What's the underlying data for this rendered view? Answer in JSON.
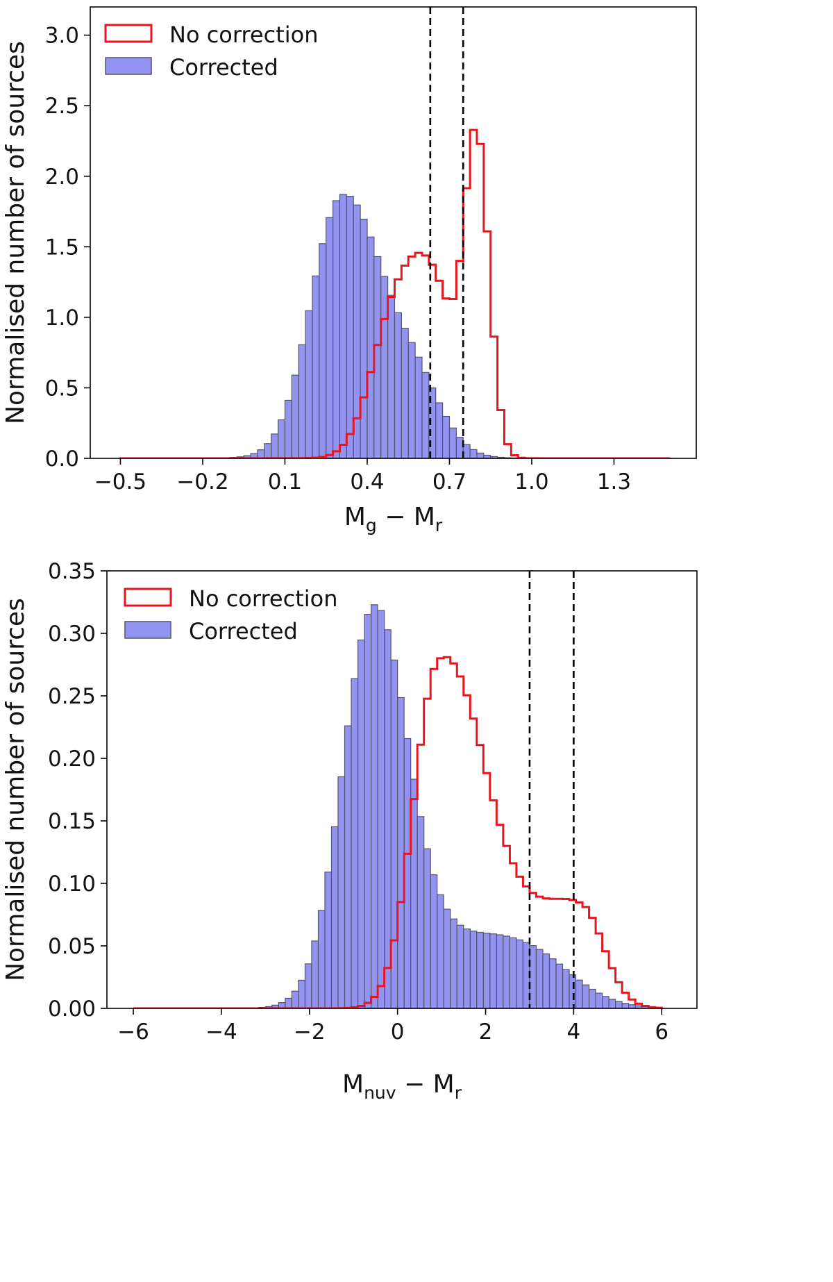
{
  "chart_data": [
    {
      "type": "histogram",
      "xlabel": {
        "base": "M",
        "sub1": "g",
        "minus": " − ",
        "base2": "M",
        "sub2": "r"
      },
      "ylabel": "Normalised number of sources",
      "xlim": [
        -0.61,
        1.6
      ],
      "ylim": [
        0,
        3.2
      ],
      "xticks": [
        -0.5,
        -0.2,
        0.1,
        0.4,
        0.7,
        1.0,
        1.3
      ],
      "xtick_labels": [
        "−0.5",
        "−0.2",
        "0.1",
        "0.4",
        "0.7",
        "1.0",
        "1.3"
      ],
      "yticks": [
        0.0,
        0.5,
        1.0,
        1.5,
        2.0,
        2.5,
        3.0
      ],
      "ytick_labels": [
        "0.0",
        "0.5",
        "1.0",
        "1.5",
        "2.0",
        "2.5",
        "3.0"
      ],
      "legend": {
        "position": "upper-left",
        "entries": [
          "No correction",
          "Corrected"
        ]
      },
      "vlines": [
        0.63,
        0.75
      ],
      "bins": {
        "start": -0.5,
        "end": 1.5,
        "count": 80
      },
      "series": [
        {
          "name": "Corrected",
          "style": "filled-bars",
          "color": "#8080f0",
          "edge": "#555566",
          "peaks": [
            {
              "center": 0.3,
              "amp": 1.7,
              "sigma_left": 0.11,
              "sigma_right": 0.13
            },
            {
              "center": 0.55,
              "amp": 0.6,
              "sigma_left": 0.15,
              "sigma_right": 0.11
            }
          ],
          "tail": 0.04
        },
        {
          "name": "No correction",
          "style": "step",
          "color": "#e8141e",
          "peaks": [
            {
              "center": 0.49,
              "amp": 0.8,
              "sigma_left": 0.085,
              "sigma_right": 0.1
            },
            {
              "center": 0.64,
              "amp": 1.1,
              "sigma_left": 0.1,
              "sigma_right": 0.08
            },
            {
              "center": 0.8,
              "amp": 2.2,
              "sigma_left": 0.045,
              "sigma_right": 0.045
            }
          ],
          "tail": 0.005
        }
      ]
    },
    {
      "type": "histogram",
      "xlabel": {
        "base": "M",
        "sub1": "nuv",
        "minus": " − ",
        "base2": "M",
        "sub2": "r"
      },
      "ylabel": "Normalised number of sources",
      "xlim": [
        -6.6,
        6.8
      ],
      "ylim": [
        0,
        0.35
      ],
      "xticks": [
        -6,
        -4,
        -2,
        0,
        2,
        4,
        6
      ],
      "xtick_labels": [
        "−6",
        "−4",
        "−2",
        "0",
        "2",
        "4",
        "6"
      ],
      "yticks": [
        0.0,
        0.05,
        0.1,
        0.15,
        0.2,
        0.25,
        0.3,
        0.35
      ],
      "ytick_labels": [
        "0.00",
        "0.05",
        "0.10",
        "0.15",
        "0.20",
        "0.25",
        "0.30",
        "0.35"
      ],
      "legend": {
        "position": "upper-left",
        "entries": [
          "No correction",
          "Corrected"
        ]
      },
      "vlines": [
        3.0,
        4.0
      ],
      "bins": {
        "start": -6.0,
        "end": 6.0,
        "count": 80
      },
      "series": [
        {
          "name": "Corrected",
          "style": "filled-bars",
          "color": "#8080f0",
          "edge": "#555566",
          "peaks": [
            {
              "center": -0.55,
              "amp": 0.3,
              "sigma_left": 0.7,
              "sigma_right": 0.75
            },
            {
              "center": 1.0,
              "amp": 0.045,
              "sigma_left": 1.3,
              "sigma_right": 1.5
            },
            {
              "center": 3.0,
              "amp": 0.033,
              "sigma_left": 1.2,
              "sigma_right": 1.0
            }
          ],
          "tail": 0.0
        },
        {
          "name": "No correction",
          "style": "step",
          "color": "#e8141e",
          "peaks": [
            {
              "center": 0.9,
              "amp": 0.25,
              "sigma_left": 0.55,
              "sigma_right": 0.9
            },
            {
              "center": 2.0,
              "amp": 0.07,
              "sigma_left": 0.8,
              "sigma_right": 1.2
            },
            {
              "center": 4.2,
              "amp": 0.07,
              "sigma_left": 0.9,
              "sigma_right": 0.5
            }
          ],
          "tail": 0.0
        }
      ]
    }
  ]
}
